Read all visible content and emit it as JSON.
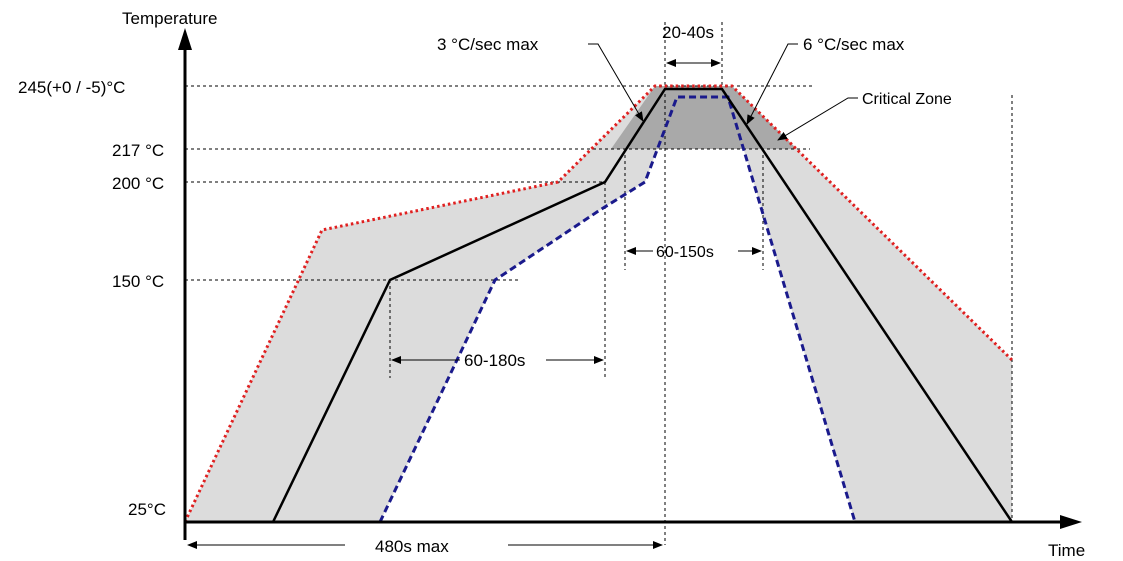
{
  "axes": {
    "y_label": "Temperature",
    "x_label": "Time"
  },
  "temperature_levels": [
    {
      "label": "245(+0 / -5)°C"
    },
    {
      "label": "217 °C"
    },
    {
      "label": "200 °C"
    },
    {
      "label": "150 °C"
    },
    {
      "label": "25°C"
    }
  ],
  "annotations": {
    "ramp_up": "3 °C/sec max",
    "peak_time": "20-40s",
    "ramp_down": "6 °C/sec max",
    "critical_zone": "Critical Zone",
    "above_liquidus": "60-150s",
    "preheat": "60-180s",
    "total_time": "480s max"
  },
  "colors": {
    "profile_line": "#000000",
    "upper_limit": "#e02020",
    "lower_limit": "#1a1a8c",
    "process_window": "#dcdcdc",
    "critical_zone": "#a9a9a9"
  }
}
